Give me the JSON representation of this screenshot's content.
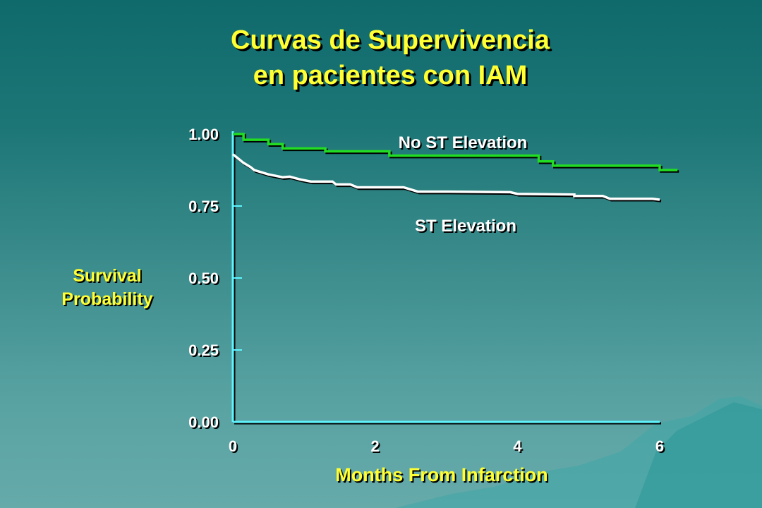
{
  "header": {
    "title_line1": "Curvas de Supervivencia",
    "title_line2": "en pacientes con IAM"
  },
  "colors": {
    "background": "#2a8080",
    "title": "#ffff33",
    "axis": "#5ff5ff",
    "no_st_line": "#22dd22",
    "st_line": "#ffffff"
  },
  "chart_data": {
    "type": "line",
    "title": "Curvas de Supervivencia en pacientes con IAM",
    "xlabel": "Months From Infarction",
    "ylabel_line1": "Survival",
    "ylabel_line2": "Probability",
    "xlim": [
      0,
      6
    ],
    "ylim": [
      0,
      1
    ],
    "x_ticks": [
      "0",
      "2",
      "4",
      "6"
    ],
    "y_ticks": [
      "0.00",
      "0.25",
      "0.50",
      "0.75",
      "1.00"
    ],
    "grid": false,
    "series": [
      {
        "name": "No ST Elevation",
        "step": true,
        "points": [
          [
            0,
            1.0
          ],
          [
            0.1,
            1.0
          ],
          [
            0.15,
            0.98
          ],
          [
            0.45,
            0.98
          ],
          [
            0.5,
            0.965
          ],
          [
            0.7,
            0.965
          ],
          [
            0.7,
            0.95
          ],
          [
            1.2,
            0.95
          ],
          [
            1.3,
            0.94
          ],
          [
            2.2,
            0.94
          ],
          [
            2.2,
            0.925
          ],
          [
            4.3,
            0.925
          ],
          [
            4.3,
            0.905
          ],
          [
            4.5,
            0.905
          ],
          [
            4.5,
            0.89
          ],
          [
            6.0,
            0.89
          ],
          [
            6.0,
            0.875
          ],
          [
            6.25,
            0.875
          ]
        ]
      },
      {
        "name": "ST Elevation",
        "step": false,
        "points": [
          [
            0,
            0.93
          ],
          [
            0.05,
            0.92
          ],
          [
            0.15,
            0.9
          ],
          [
            0.25,
            0.885
          ],
          [
            0.3,
            0.875
          ],
          [
            0.5,
            0.86
          ],
          [
            0.7,
            0.85
          ],
          [
            0.8,
            0.852
          ],
          [
            0.95,
            0.842
          ],
          [
            1.1,
            0.835
          ],
          [
            1.4,
            0.835
          ],
          [
            1.45,
            0.825
          ],
          [
            1.65,
            0.825
          ],
          [
            1.75,
            0.815
          ],
          [
            2.4,
            0.815
          ],
          [
            2.6,
            0.8
          ],
          [
            3.0,
            0.8
          ],
          [
            3.9,
            0.798
          ],
          [
            4.0,
            0.792
          ],
          [
            4.8,
            0.79
          ],
          [
            4.8,
            0.785
          ],
          [
            5.2,
            0.785
          ],
          [
            5.3,
            0.775
          ],
          [
            5.9,
            0.775
          ],
          [
            6.0,
            0.772
          ]
        ]
      }
    ],
    "annotations": [
      {
        "text": "No ST Elevation",
        "series": "No ST Elevation"
      },
      {
        "text": "ST Elevation",
        "series": "ST Elevation"
      }
    ]
  }
}
